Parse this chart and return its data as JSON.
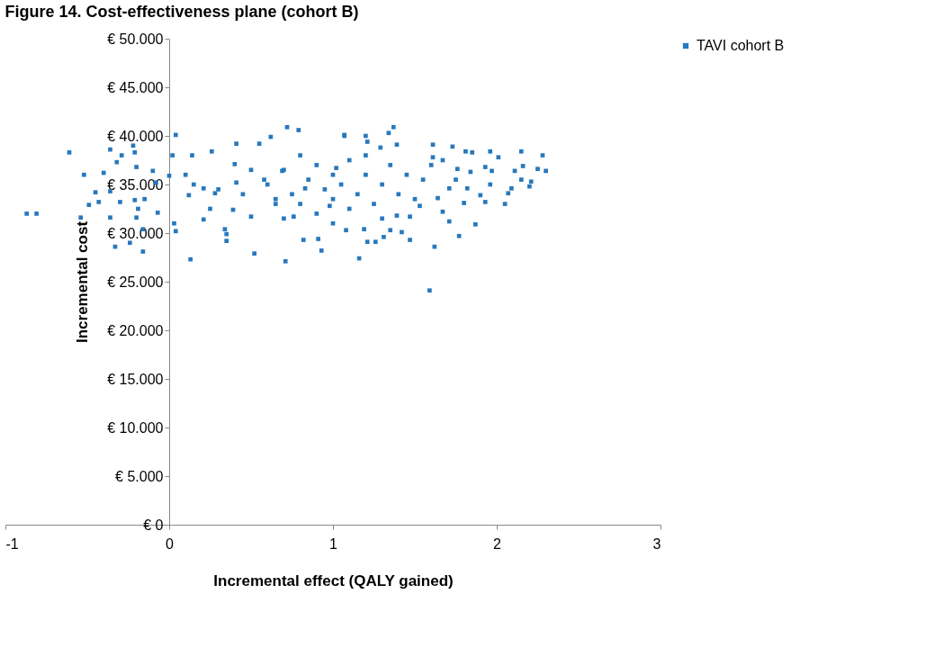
{
  "chart_data": {
    "type": "scatter",
    "title": "Figure 14. Cost-effectiveness plane (cohort B)",
    "xlabel": "Incremental effect (QALY gained)",
    "ylabel": "Incremental cost",
    "xlim": [
      -1,
      3
    ],
    "xticks": [
      -1,
      0,
      1,
      2,
      3
    ],
    "ylim": [
      0,
      50000
    ],
    "yticks": [
      {
        "value": 0,
        "label": "€ 0"
      },
      {
        "value": 5000,
        "label": "€ 5.000"
      },
      {
        "value": 10000,
        "label": "€ 10.000"
      },
      {
        "value": 15000,
        "label": "€ 15.000"
      },
      {
        "value": 20000,
        "label": "€ 20.000"
      },
      {
        "value": 25000,
        "label": "€ 25.000"
      },
      {
        "value": 30000,
        "label": "€ 30.000"
      },
      {
        "value": 35000,
        "label": "€ 35.000"
      },
      {
        "value": 40000,
        "label": "€ 40.000"
      },
      {
        "value": 45000,
        "label": "€ 45.000"
      },
      {
        "value": 50000,
        "label": "€ 50.000"
      }
    ],
    "grid": false,
    "legend": "right",
    "marker": "square",
    "series": [
      {
        "name": "TAVI cohort B",
        "color": "#2878bd",
        "x": [
          -0.87,
          -0.81,
          -0.61,
          -0.36,
          -0.32,
          -0.29,
          -0.22,
          -0.21,
          -0.2,
          -0.52,
          -0.4,
          -0.45,
          -0.36,
          -0.49,
          -0.43,
          -0.3,
          -0.21,
          -0.15,
          -0.54,
          -0.36,
          -0.2,
          -0.19,
          -0.33,
          -0.24,
          -0.16,
          -0.16,
          -0.07,
          -0.1,
          -0.08,
          0.0,
          0.04,
          0.02,
          0.04,
          0.03,
          0.13,
          0.14,
          0.12,
          0.21,
          0.26,
          0.35,
          0.35,
          0.34,
          0.41,
          0.4,
          0.28,
          0.21,
          0.39,
          0.41,
          0.52,
          0.55,
          0.62,
          0.5,
          0.58,
          0.71,
          0.72,
          0.79,
          0.82,
          0.91,
          0.93,
          0.69,
          0.65,
          0.76,
          0.83,
          0.98,
          1.02,
          1.07,
          1.37,
          1.07,
          1.2,
          1.34,
          1.21,
          1.39,
          1.29,
          1.61,
          1.73,
          1.81,
          1.96,
          2.15,
          2.28,
          1.85,
          2.01,
          2.16,
          2.25,
          2.3,
          1.97,
          1.93,
          2.11,
          2.15,
          2.21,
          2.2,
          2.09,
          2.07,
          2.05,
          1.96,
          1.9,
          1.93,
          1.87,
          1.8,
          1.77,
          1.71,
          1.67,
          1.62,
          1.59,
          1.47,
          1.42,
          1.35,
          1.31,
          1.26,
          1.21,
          1.16,
          1.08,
          1.19,
          1.39,
          1.71,
          1.82,
          1.84,
          1.76,
          1.67,
          1.61,
          1.75,
          1.64,
          1.53,
          1.47,
          0.6,
          0.7,
          0.75,
          0.8,
          0.85,
          0.9,
          0.95,
          1.0,
          1.0,
          1.05,
          1.1,
          1.1,
          1.15,
          1.2,
          1.25,
          1.3,
          1.35,
          1.4,
          1.45,
          1.5,
          1.55,
          0.65,
          0.9,
          1.2,
          0.8,
          0.5,
          0.45,
          0.3,
          0.25,
          0.15,
          0.1,
          1.3,
          1.6,
          1.0,
          0.7
        ],
        "values": [
          32000,
          32000,
          38300,
          38600,
          37300,
          38000,
          39000,
          38300,
          36800,
          36000,
          36200,
          34200,
          34300,
          32900,
          33200,
          33200,
          33400,
          33500,
          31600,
          31600,
          31600,
          32500,
          28600,
          29000,
          28100,
          30400,
          32100,
          36400,
          35200,
          35900,
          40100,
          38000,
          30200,
          31000,
          27300,
          38000,
          33900,
          31400,
          38400,
          29900,
          29200,
          30400,
          39200,
          37100,
          34100,
          34600,
          32400,
          35200,
          27900,
          39200,
          39900,
          31700,
          35500,
          27100,
          40900,
          40600,
          29300,
          29400,
          28200,
          36400,
          33500,
          31700,
          34600,
          32800,
          36700,
          40000,
          40900,
          40100,
          40000,
          40300,
          39400,
          39100,
          38800,
          39100,
          38900,
          38400,
          38400,
          38400,
          38000,
          38300,
          37800,
          36900,
          36600,
          36400,
          36400,
          36800,
          36400,
          35500,
          35300,
          34800,
          34600,
          34100,
          33000,
          35000,
          33900,
          33200,
          30900,
          33100,
          29700,
          31200,
          32200,
          28600,
          24100,
          29300,
          30100,
          30300,
          29600,
          29100,
          29100,
          27400,
          30300,
          30400,
          31800,
          34600,
          34600,
          36300,
          36600,
          37500,
          37800,
          35500,
          33600,
          32800,
          31700,
          35000,
          36500,
          34000,
          33000,
          35500,
          37000,
          34500,
          36000,
          33500,
          35000,
          37500,
          32500,
          34000,
          36000,
          33000,
          35000,
          37000,
          34000,
          36000,
          33500,
          35500,
          33000,
          32000,
          38000,
          38000,
          36500,
          34000,
          34500,
          32500,
          35000,
          36000,
          31500,
          37000,
          31000,
          31500
        ]
      }
    ]
  }
}
